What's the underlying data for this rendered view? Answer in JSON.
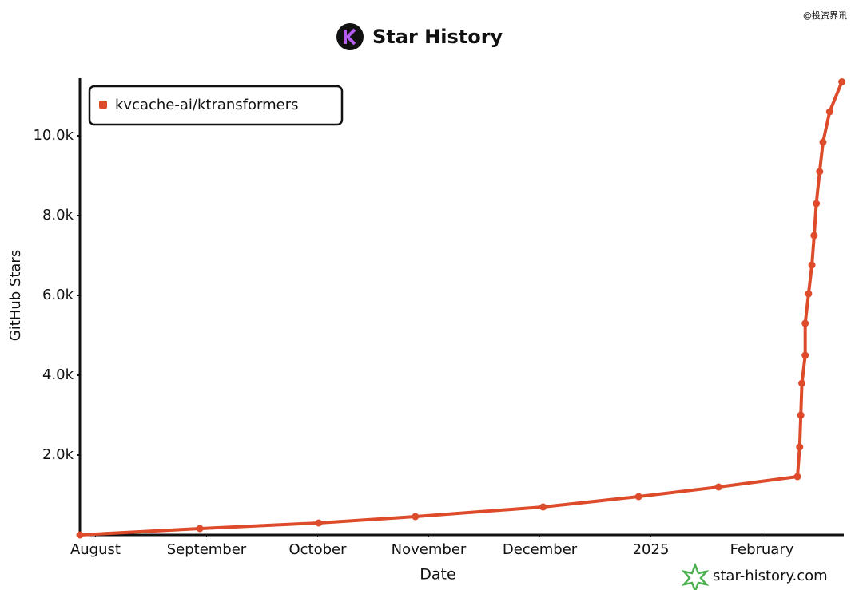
{
  "chart_data": {
    "type": "line",
    "title": "Star History",
    "watermark": "@投资界讯",
    "footer": "star-history.com",
    "x_label": "Date",
    "y_label": "GitHub Stars",
    "xlim": [
      -0.14,
      6.73
    ],
    "xticks": [
      {
        "value": 0,
        "label": "August"
      },
      {
        "value": 1,
        "label": "September"
      },
      {
        "value": 2,
        "label": "October"
      },
      {
        "value": 3,
        "label": "November"
      },
      {
        "value": 4,
        "label": "December"
      },
      {
        "value": 5,
        "label": "2025"
      },
      {
        "value": 6,
        "label": "February"
      }
    ],
    "ylim": [
      0,
      11400
    ],
    "yticks": [
      {
        "value": 2000,
        "label": "2.0k"
      },
      {
        "value": 4000,
        "label": "4.0k"
      },
      {
        "value": 6000,
        "label": "6.0k"
      },
      {
        "value": 8000,
        "label": "8.0k"
      },
      {
        "value": 10000,
        "label": "10.0k"
      }
    ],
    "legend": "top-left",
    "series": [
      {
        "name": "kvcache-ai/ktransformers",
        "color": "#dd4b2b",
        "x": [
          -0.14,
          0.94,
          2.01,
          2.88,
          4.03,
          4.89,
          5.61,
          6.32,
          6.34,
          6.35,
          6.36,
          6.39,
          6.39,
          6.42,
          6.45,
          6.47,
          6.49,
          6.52,
          6.55,
          6.61,
          6.72
        ],
        "values": [
          0,
          160,
          300,
          460,
          700,
          960,
          1200,
          1460,
          2200,
          3000,
          3800,
          4500,
          5300,
          6040,
          6760,
          7500,
          8300,
          9100,
          9840,
          10600,
          11350
        ]
      }
    ]
  }
}
